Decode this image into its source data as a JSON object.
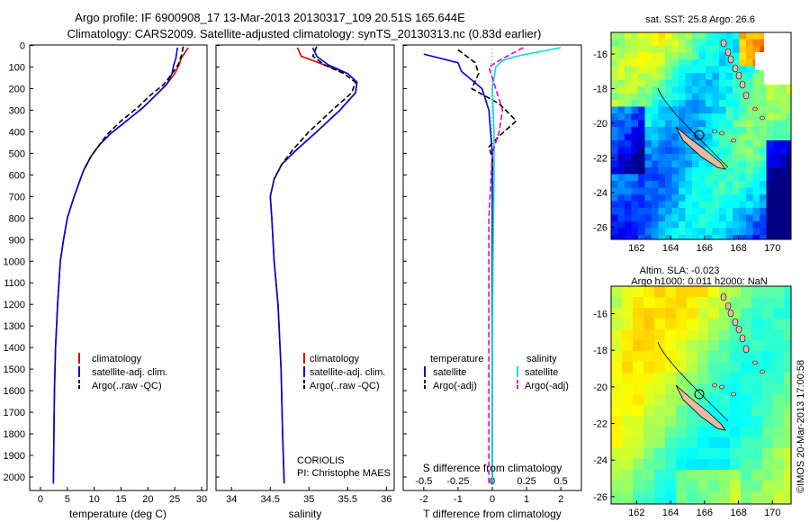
{
  "title_line1": "Argo profile: IF 6900908_17 13-Mar-2013 20130317_109 20.51S 165.644E",
  "title_line2": "Climatology: CARS2009. Satellite-adjusted climatology: synTS_20130313.nc (0.83d earlier)",
  "map_sst_title": "sat. SST: 25.8 Argo: 26.6",
  "map_sla_title1": "Altim. SLA: -0.023",
  "map_sla_title2": "Argo h1000: 0.011 h2000: NaN",
  "side_text": "©IMOS 20-Mar-2013 17:00:58",
  "coriolis_line1": "CORIOLIS",
  "coriolis_line2": "PI: Christophe MAES",
  "map_lon_ticks": [
    "162",
    "164",
    "166",
    "168",
    "170"
  ],
  "map_lat_ticks": [
    "-16",
    "-18",
    "-20",
    "-22",
    "-24",
    "-26"
  ],
  "colors": {
    "climatology": "#dd0000",
    "satellite": "#0000dd",
    "argo": "#000000",
    "satellite_salinity": "#00dddd",
    "argo_salinity": "#dd00dd",
    "land": "#e8b8a0"
  },
  "chart_data": [
    {
      "type": "line",
      "panel": "temperature",
      "xlabel": "temperature (deg C)",
      "ylabel": "",
      "xlim": [
        -2,
        31
      ],
      "ylim": [
        2080,
        0
      ],
      "xticks": [
        "0",
        "5",
        "10",
        "15",
        "20",
        "25",
        "30"
      ],
      "yticks": [
        "0",
        "100",
        "200",
        "300",
        "400",
        "500",
        "600",
        "700",
        "800",
        "900",
        "1000",
        "1100",
        "1200",
        "1300",
        "1400",
        "1500",
        "1600",
        "1700",
        "1800",
        "1900",
        "2000"
      ],
      "legend": [
        "climatology",
        "satellite-adj. clim.",
        "Argo(..raw -QC)"
      ],
      "series": [
        {
          "name": "climatology",
          "x": [
            27.5,
            26.2,
            25.8,
            25,
            23.5,
            21.5,
            19,
            16,
            13,
            11,
            9.5,
            8,
            7,
            6,
            5,
            4.3,
            3.7,
            3.2,
            2.8,
            2.6,
            2.5,
            2.4
          ],
          "y": [
            10,
            60,
            90,
            130,
            180,
            230,
            290,
            350,
            410,
            460,
            510,
            580,
            650,
            720,
            800,
            900,
            1000,
            1200,
            1400,
            1600,
            1800,
            2030
          ]
        },
        {
          "name": "satellite-adj. clim.",
          "x": [
            25.5,
            25.2,
            24.8,
            24.5,
            23.5,
            21.5,
            19,
            16,
            13,
            11,
            9.5,
            8,
            7,
            6,
            5,
            4.3,
            3.7,
            3.2,
            2.8,
            2.6,
            2.5,
            2.4
          ],
          "y": [
            10,
            60,
            90,
            130,
            180,
            230,
            290,
            350,
            410,
            460,
            510,
            580,
            650,
            720,
            800,
            900,
            1000,
            1200,
            1400,
            1600,
            1800,
            2030
          ]
        },
        {
          "name": "Argo(..raw -QC)",
          "x": [
            26.6,
            26.2,
            25.6,
            24.5,
            23,
            20.5,
            18,
            15,
            12.5,
            11,
            9.5,
            8
          ],
          "y": [
            5,
            50,
            90,
            130,
            180,
            230,
            290,
            350,
            410,
            460,
            510,
            580
          ]
        }
      ]
    },
    {
      "type": "line",
      "panel": "salinity",
      "xlabel": "salinity",
      "ylabel": "",
      "xlim": [
        33.8,
        36.1
      ],
      "ylim": [
        2080,
        0
      ],
      "xticks": [
        "34",
        "34.5",
        "35",
        "35.5",
        "36"
      ],
      "legend": [
        "climatology",
        "satellite-adj. clim.",
        "Argo(..raw -QC)"
      ],
      "series": [
        {
          "name": "climatology",
          "x": [
            34.85,
            34.9,
            35.2,
            35.5,
            35.62,
            35.6,
            35.4,
            35.1,
            34.85,
            34.65,
            34.55,
            34.5,
            34.52,
            34.55,
            34.6,
            34.64,
            34.66,
            34.68
          ],
          "y": [
            10,
            50,
            90,
            130,
            170,
            220,
            300,
            400,
            480,
            550,
            620,
            700,
            800,
            1000,
            1200,
            1500,
            1800,
            2030
          ]
        },
        {
          "name": "satellite-adj. clim.",
          "x": [
            35.05,
            35.1,
            35.25,
            35.5,
            35.62,
            35.6,
            35.4,
            35.1,
            34.85,
            34.65,
            34.55,
            34.5,
            34.52,
            34.55,
            34.6,
            34.64,
            34.66,
            34.68
          ],
          "y": [
            10,
            50,
            90,
            130,
            170,
            220,
            300,
            400,
            480,
            550,
            620,
            700,
            800,
            1000,
            1200,
            1500,
            1800,
            2030
          ]
        },
        {
          "name": "Argo(..raw -QC)",
          "x": [
            35.1,
            35.05,
            35.2,
            35.45,
            35.6,
            35.55,
            35.3,
            35.0,
            34.8,
            34.65,
            34.55
          ],
          "y": [
            5,
            50,
            90,
            130,
            170,
            220,
            300,
            400,
            480,
            550,
            620
          ]
        }
      ]
    },
    {
      "type": "line",
      "panel": "difference",
      "xlabel": "T difference from climatology",
      "xlabel_top": "S difference from climatology",
      "xlim": [
        -2.6,
        2.6
      ],
      "ylim": [
        2080,
        0
      ],
      "xticks": [
        "-2",
        "-1",
        "0",
        "1",
        "2"
      ],
      "xticks_top": [
        "-0.5",
        "-0.25",
        "0",
        "0.25",
        "0.5"
      ],
      "legend_temperature_title": "temperature",
      "legend_salinity_title": "salinity",
      "legend": [
        "satellite",
        "Argo(-adj)",
        "satellite",
        "Argo(-adj)"
      ],
      "series": [
        {
          "name": "temperature satellite",
          "x": [
            -2.0,
            -1.0,
            -0.9,
            -0.3,
            -0.1,
            -0.05,
            0,
            0,
            0,
            0,
            0
          ],
          "y": [
            40,
            80,
            120,
            200,
            300,
            400,
            500,
            700,
            1000,
            1500,
            2030
          ]
        },
        {
          "name": "temperature Argo(-adj)",
          "x": [
            -1.0,
            -0.5,
            -0.4,
            -0.6,
            0.2,
            0.7,
            0.2,
            -0.1,
            0,
            0
          ],
          "y": [
            20,
            80,
            130,
            200,
            270,
            350,
            420,
            470,
            520,
            600
          ]
        },
        {
          "name": "salinity satellite",
          "x": [
            2.0,
            0.7,
            0.3,
            0.1,
            0.0,
            0.05,
            0.05,
            0.02,
            0.0,
            0.0
          ],
          "y": [
            10,
            50,
            70,
            100,
            200,
            400,
            600,
            1000,
            1500,
            2030
          ]
        },
        {
          "name": "salinity Argo(-adj)",
          "x": [
            0.9,
            0.2,
            -0.1,
            0.1,
            0.3,
            0.2,
            0.0,
            -0.1,
            -0.1,
            -0.1
          ],
          "y": [
            10,
            70,
            100,
            200,
            300,
            400,
            500,
            800,
            1500,
            2030
          ]
        }
      ]
    }
  ]
}
